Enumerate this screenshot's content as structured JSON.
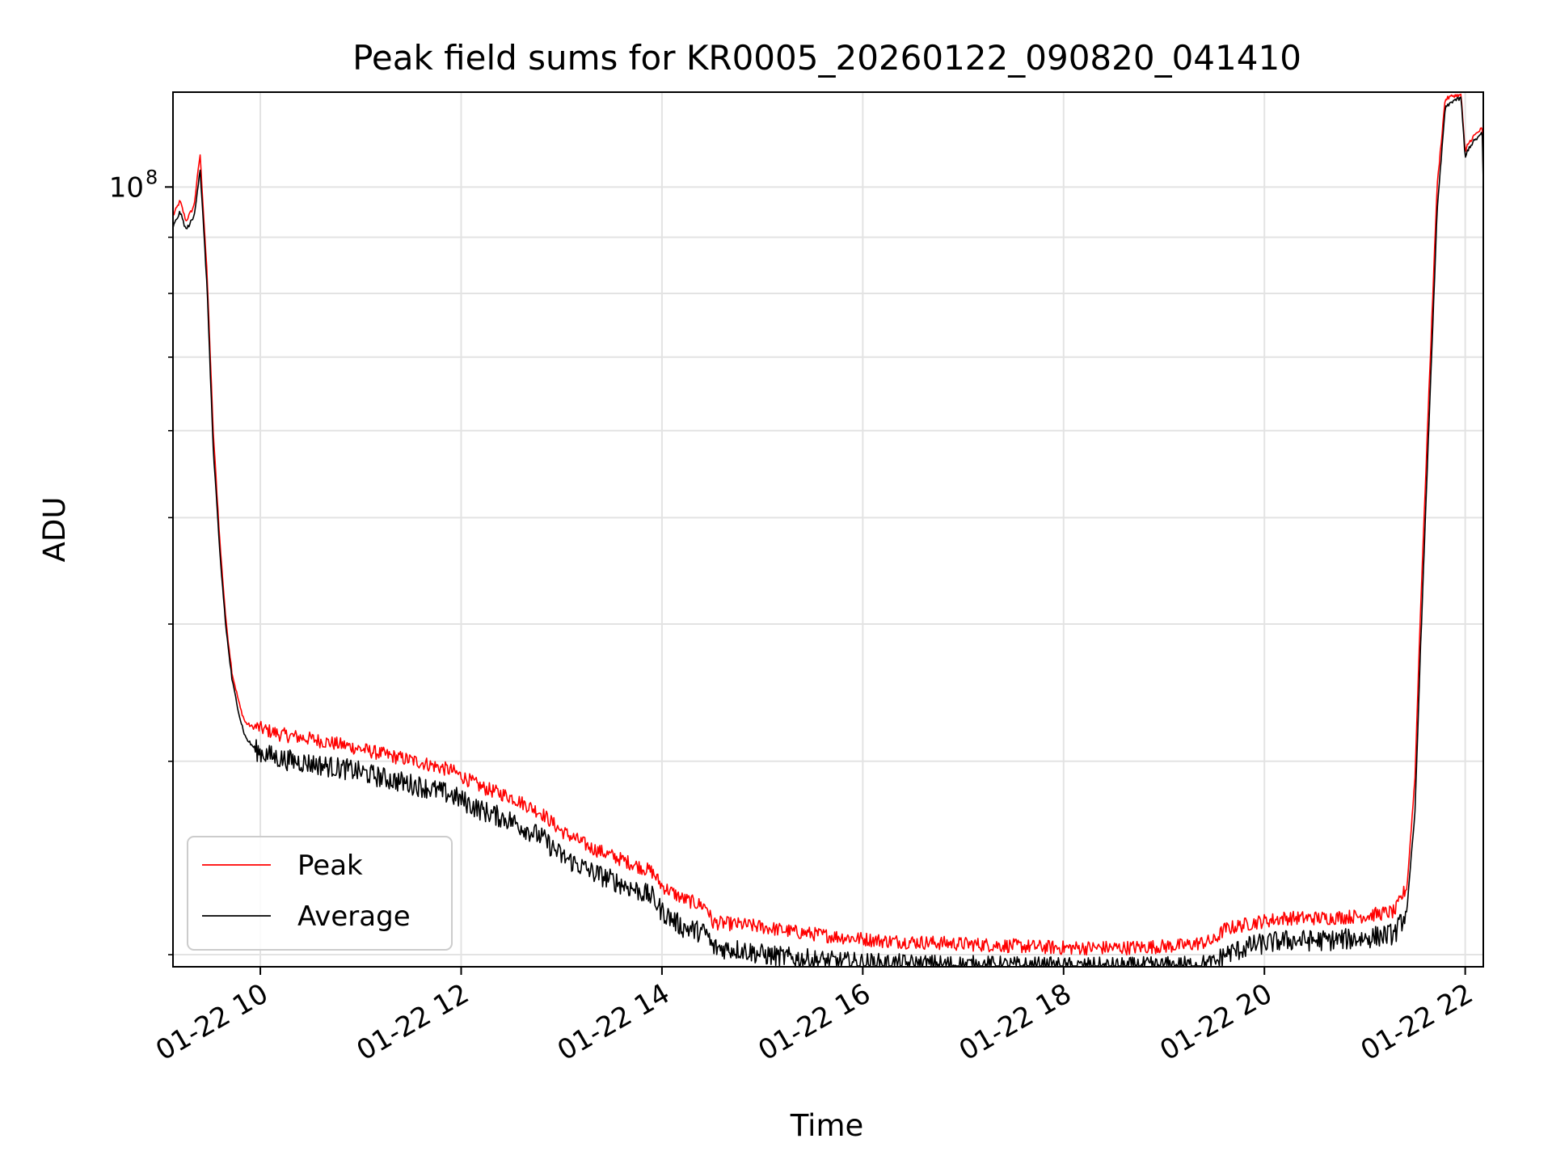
{
  "chart_data": {
    "type": "line",
    "title": "Peak field sums for KR0005_20260122_090820_041410",
    "xlabel": "Time",
    "ylabel": "ADU",
    "yscale": "log",
    "ylim": [
      19500000,
      122000000
    ],
    "xlim_hours": [
      9.13,
      22.18
    ],
    "grid": true,
    "legend_position": "lower-left",
    "x_ticks": [
      {
        "hour": 10,
        "label": "01-22 10"
      },
      {
        "hour": 12,
        "label": "01-22 12"
      },
      {
        "hour": 14,
        "label": "01-22 14"
      },
      {
        "hour": 16,
        "label": "01-22 16"
      },
      {
        "hour": 18,
        "label": "01-22 18"
      },
      {
        "hour": 20,
        "label": "01-22 20"
      },
      {
        "hour": 22,
        "label": "01-22 22"
      }
    ],
    "y_major_ticks": [
      {
        "value": 100000000,
        "base": "10",
        "exp": "8"
      }
    ],
    "y_minor_ticks": [
      20000000,
      30000000,
      40000000,
      50000000,
      60000000,
      70000000,
      80000000,
      90000000
    ],
    "series": [
      {
        "name": "Peak",
        "color": "#ff0000",
        "x_hours": [
          9.13,
          9.2,
          9.26,
          9.34,
          9.4,
          9.47,
          9.53,
          9.6,
          9.66,
          9.72,
          9.8,
          9.85,
          9.92,
          10.0,
          10.2,
          10.5,
          10.9,
          11.3,
          11.6,
          11.9,
          12.2,
          12.5,
          12.8,
          13.0,
          13.3,
          13.6,
          13.9,
          14.0,
          14.2,
          14.45,
          14.5,
          14.8,
          15.0,
          15.3,
          15.7,
          16.2,
          16.8,
          17.4,
          18.0,
          18.6,
          19.2,
          19.5,
          19.6,
          19.9,
          20.2,
          20.6,
          21.0,
          21.3,
          21.42,
          21.5,
          21.55,
          21.63,
          21.72,
          21.8,
          21.88,
          21.96,
          22.0,
          22.02,
          22.08,
          22.17,
          22.18
        ],
        "values": [
          94000000,
          97000000,
          93000000,
          96000000,
          107000000,
          83000000,
          60000000,
          47000000,
          40000000,
          36000000,
          33500000,
          32500000,
          32200000,
          32000000,
          31600000,
          31300000,
          30800000,
          30200000,
          29800000,
          29300000,
          28300000,
          27700000,
          26800000,
          25800000,
          24900000,
          24300000,
          23700000,
          23000000,
          22400000,
          22000000,
          21300000,
          21200000,
          21100000,
          20900000,
          20700000,
          20500000,
          20400000,
          20300000,
          20200000,
          20200000,
          20300000,
          20500000,
          21000000,
          21300000,
          21500000,
          21500000,
          21600000,
          21800000,
          23000000,
          29000000,
          40000000,
          62000000,
          100000000,
          120000000,
          121000000,
          121000000,
          107000000,
          109000000,
          111000000,
          113000000,
          103000000
        ]
      },
      {
        "name": "Average",
        "color": "#000000",
        "x_hours": [
          9.13,
          9.2,
          9.26,
          9.34,
          9.4,
          9.47,
          9.53,
          9.6,
          9.66,
          9.72,
          9.8,
          9.85,
          9.92,
          10.0,
          10.2,
          10.5,
          10.9,
          11.3,
          11.6,
          11.9,
          12.2,
          12.5,
          12.8,
          13.0,
          13.3,
          13.6,
          13.9,
          14.0,
          14.2,
          14.45,
          14.5,
          14.8,
          15.0,
          15.3,
          15.7,
          16.2,
          16.8,
          17.4,
          18.0,
          18.6,
          19.2,
          19.5,
          19.6,
          19.9,
          20.2,
          20.6,
          21.0,
          21.3,
          21.42,
          21.5,
          21.55,
          21.63,
          21.72,
          21.8,
          21.88,
          21.96,
          22.0,
          22.02,
          22.08,
          22.17,
          22.18
        ],
        "values": [
          92000000,
          95000000,
          91500000,
          94000000,
          104000000,
          81000000,
          58000000,
          46000000,
          39500000,
          35500000,
          32800000,
          31600000,
          31000000,
          30700000,
          30300000,
          30000000,
          29600000,
          29000000,
          28600000,
          28100000,
          27200000,
          26600000,
          25700000,
          24700000,
          23900000,
          23300000,
          22700000,
          22000000,
          21300000,
          21000000,
          20400000,
          20300000,
          20100000,
          19950000,
          19800000,
          19700000,
          19650000,
          19600000,
          19550000,
          19550000,
          19600000,
          19700000,
          20100000,
          20500000,
          20700000,
          20700000,
          20800000,
          21000000,
          22000000,
          27000000,
          37000000,
          58000000,
          95000000,
          118000000,
          120000000,
          120500000,
          106000000,
          108000000,
          110000000,
          112000000,
          101000000
        ]
      }
    ]
  }
}
